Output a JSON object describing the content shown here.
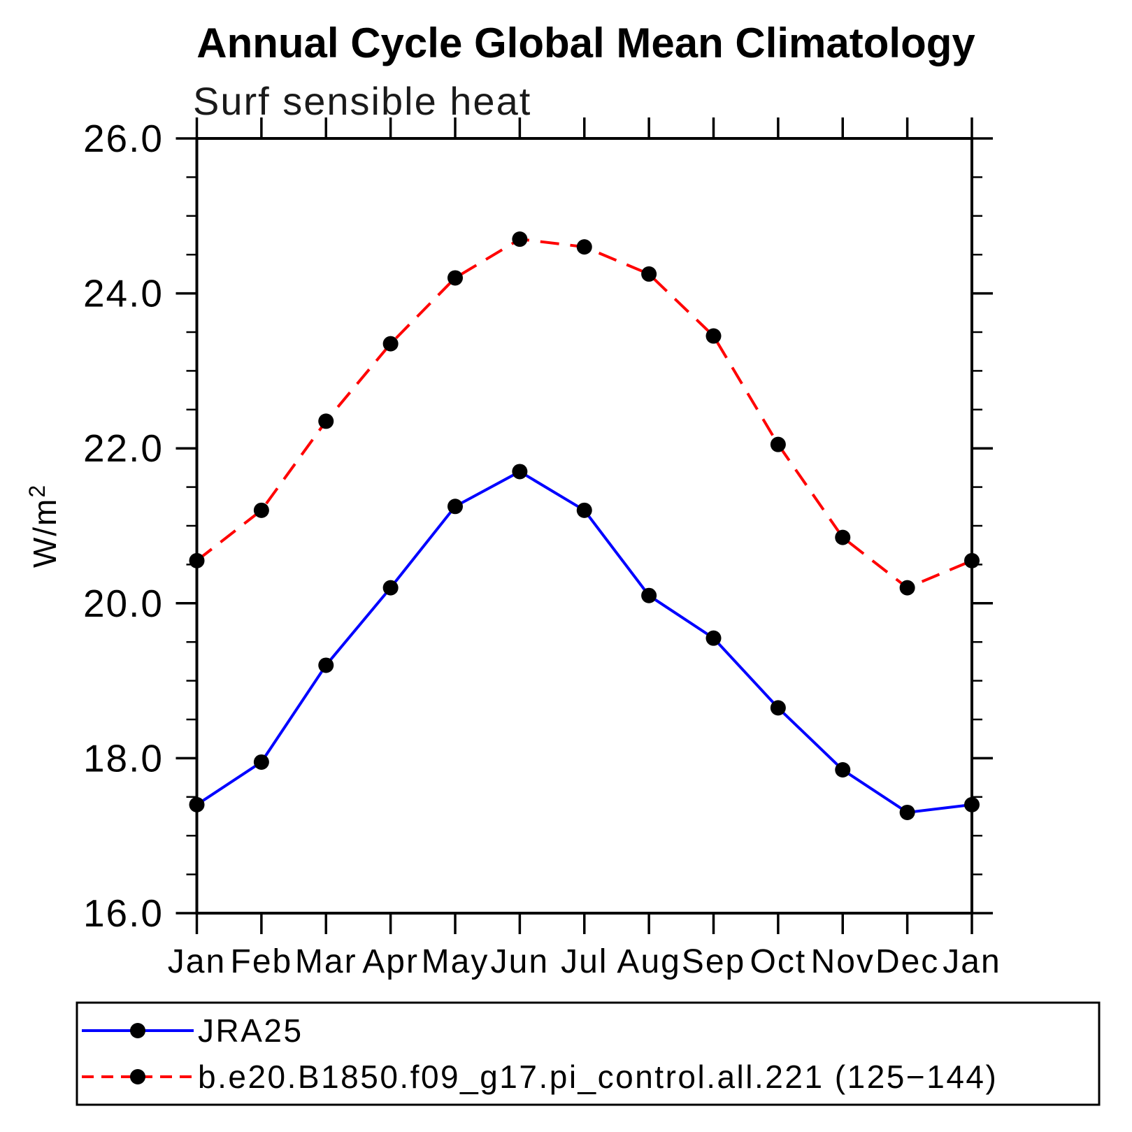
{
  "header": {
    "title": "Annual Cycle Global Mean Climatology",
    "subtitle": "Surf sensible heat"
  },
  "y_axis": {
    "title_base": "W/m",
    "title_exponent": "2",
    "tick_labels": [
      "16.0",
      "18.0",
      "20.0",
      "22.0",
      "24.0",
      "26.0"
    ],
    "tick_values": [
      16,
      18,
      20,
      22,
      24,
      26
    ]
  },
  "legend": {
    "items": [
      {
        "label": "JRA25"
      },
      {
        "label": "b.e20.B1850.f09_g17.pi_control.all.221 (125−144)"
      }
    ]
  },
  "chart_data": {
    "type": "line",
    "title": "Annual Cycle Global Mean Climatology",
    "subtitle": "Surf sensible heat",
    "xlabel": "",
    "ylabel": "W/m^2",
    "ylim": [
      16.0,
      26.0
    ],
    "y_major_step": 2.0,
    "y_minor_step": 0.5,
    "grid": false,
    "legend_position": "bottom-left box",
    "categories": [
      "Jan",
      "Feb",
      "Mar",
      "Apr",
      "May",
      "Jun",
      "Jul",
      "Aug",
      "Sep",
      "Oct",
      "Nov",
      "Dec",
      "Jan"
    ],
    "series": [
      {
        "name": "JRA25",
        "color": "#0000ff",
        "line_style": "solid",
        "marker": "filled-circle",
        "marker_color": "#000000",
        "values": [
          17.4,
          17.95,
          19.2,
          20.2,
          21.25,
          21.7,
          21.2,
          20.1,
          19.55,
          18.65,
          17.85,
          17.3,
          17.4
        ]
      },
      {
        "name": "b.e20.B1850.f09_g17.pi_control.all.221 (125−144)",
        "color": "#ff0000",
        "line_style": "dashed",
        "marker": "filled-circle",
        "marker_color": "#000000",
        "values": [
          20.55,
          21.2,
          22.35,
          23.35,
          24.2,
          24.7,
          24.6,
          24.25,
          23.45,
          22.05,
          20.85,
          20.2,
          20.55
        ]
      }
    ],
    "colors": {
      "frame": "#000000",
      "text": "#000000"
    }
  }
}
